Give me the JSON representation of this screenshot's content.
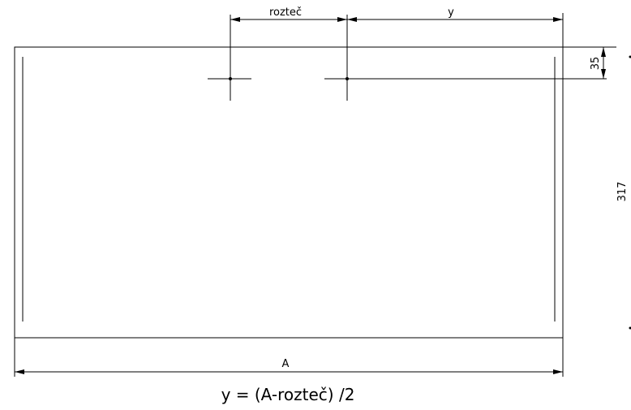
{
  "dimensions": {
    "pitch_label": "rozteč",
    "y_label": "y",
    "top_offset_label": "35",
    "height_label": "317",
    "width_label": "A"
  },
  "formula": "y = (A-rozteč) /2"
}
